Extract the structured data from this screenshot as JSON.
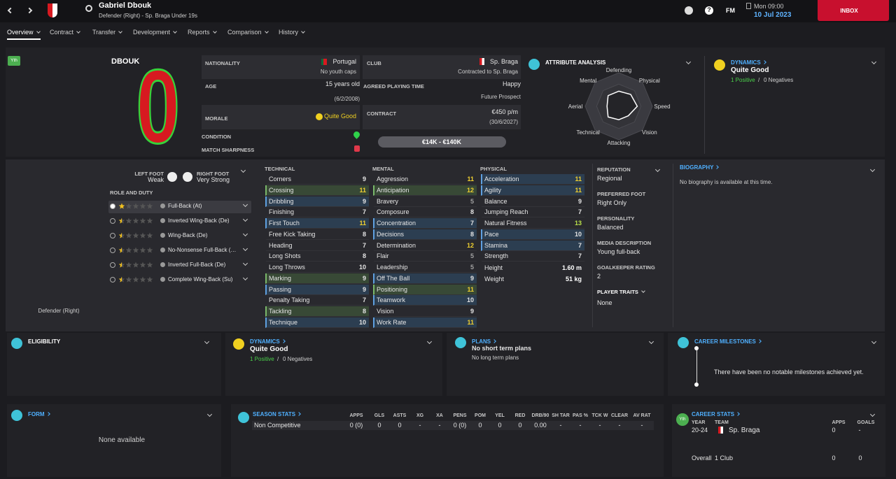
{
  "header": {
    "player_name": "Gabriel Dbouk",
    "subtitle": "Defender (Right) - Sp. Braga Under 19s",
    "help_icon": "?",
    "logo": "FM",
    "day_time": "Mon 09:00",
    "date": "10 Jul 2023",
    "inbox": "INBOX"
  },
  "tabs": [
    "Overview",
    "Contract",
    "Transfer",
    "Development",
    "Reports",
    "Comparison",
    "History"
  ],
  "profile": {
    "badge": "Yth",
    "surname": "DBOUK",
    "shirt_number": 0
  },
  "details": {
    "nationality": {
      "label": "NATIONALITY",
      "value": "Portugal",
      "note": "No youth caps"
    },
    "age": {
      "label": "AGE",
      "value": "15 years old",
      "note": "(6/2/2008)"
    },
    "morale": {
      "label": "MORALE",
      "value": "Quite Good"
    },
    "condition": {
      "label": "CONDITION"
    },
    "match_sharpness": {
      "label": "MATCH SHARPNESS"
    },
    "club": {
      "label": "CLUB",
      "value": "Sp. Braga",
      "note": "Contracted to Sp. Braga"
    },
    "playing_time": {
      "label": "AGREED PLAYING TIME",
      "value": "Happy",
      "note": "Future Prospect"
    },
    "contract": {
      "label": "CONTRACT",
      "value": "€450 p/m",
      "note": "(30/6/2027)"
    },
    "value_range": "€14K - €140K"
  },
  "attribute_analysis": {
    "title": "ATTRIBUTE ANALYSIS",
    "rlim": [
      0,
      20
    ],
    "axes": [
      {
        "label": "Defending",
        "value": 9
      },
      {
        "label": "Physical",
        "value": 10
      },
      {
        "label": "Speed",
        "value": 11
      },
      {
        "label": "Vision",
        "value": 8
      },
      {
        "label": "Attacking",
        "value": 8
      },
      {
        "label": "Technical",
        "value": 9
      },
      {
        "label": "Aerial",
        "value": 7
      },
      {
        "label": "Mental",
        "value": 9
      }
    ]
  },
  "dynamics": {
    "title": "DYNAMICS",
    "value": "Quite Good",
    "positives": "1 Positive",
    "separator": "/",
    "negatives": "0 Negatives"
  },
  "feet": {
    "left_label": "LEFT FOOT",
    "left": "Weak",
    "right_label": "RIGHT FOOT",
    "right": "Very Strong"
  },
  "roles": {
    "title": "ROLE AND DUTY",
    "items": [
      {
        "name": "Full-Back (At)",
        "stars": 1,
        "selected": true
      },
      {
        "name": "Inverted Wing-Back (De)",
        "stars": 0.5
      },
      {
        "name": "Wing-Back (De)",
        "stars": 0.5
      },
      {
        "name": "No-Nonsense Full-Back (…",
        "stars": 0.5
      },
      {
        "name": "Inverted Full-Back (De)",
        "stars": 0.5
      },
      {
        "name": "Complete Wing-Back (Su)",
        "stars": 0.5
      }
    ]
  },
  "position": "Defender (Right)",
  "attributes": {
    "groups": [
      {
        "title": "TECHNICAL",
        "items": [
          {
            "name": "Corners",
            "value": 9
          },
          {
            "name": "Crossing",
            "value": 11,
            "highlight": "key"
          },
          {
            "name": "Dribbling",
            "value": 9,
            "highlight": "preferred"
          },
          {
            "name": "Finishing",
            "value": 7
          },
          {
            "name": "First Touch",
            "value": 11,
            "highlight": "preferred"
          },
          {
            "name": "Free Kick Taking",
            "value": 8
          },
          {
            "name": "Heading",
            "value": 7
          },
          {
            "name": "Long Shots",
            "value": 8
          },
          {
            "name": "Long Throws",
            "value": 10
          },
          {
            "name": "Marking",
            "value": 9,
            "highlight": "key"
          },
          {
            "name": "Passing",
            "value": 9,
            "highlight": "preferred"
          },
          {
            "name": "Penalty Taking",
            "value": 7
          },
          {
            "name": "Tackling",
            "value": 8,
            "highlight": "key"
          },
          {
            "name": "Technique",
            "value": 10,
            "highlight": "preferred"
          }
        ]
      },
      {
        "title": "MENTAL",
        "items": [
          {
            "name": "Aggression",
            "value": 11
          },
          {
            "name": "Anticipation",
            "value": 12,
            "highlight": "key"
          },
          {
            "name": "Bravery",
            "value": 5
          },
          {
            "name": "Composure",
            "value": 8
          },
          {
            "name": "Concentration",
            "value": 7,
            "highlight": "preferred"
          },
          {
            "name": "Decisions",
            "value": 8,
            "highlight": "preferred"
          },
          {
            "name": "Determination",
            "value": 12
          },
          {
            "name": "Flair",
            "value": 5
          },
          {
            "name": "Leadership",
            "value": 5
          },
          {
            "name": "Off The Ball",
            "value": 9,
            "highlight": "preferred"
          },
          {
            "name": "Positioning",
            "value": 11,
            "highlight": "key"
          },
          {
            "name": "Teamwork",
            "value": 10,
            "highlight": "preferred"
          },
          {
            "name": "Vision",
            "value": 9
          },
          {
            "name": "Work Rate",
            "value": 11,
            "highlight": "preferred"
          }
        ]
      },
      {
        "title": "PHYSICAL",
        "items": [
          {
            "name": "Acceleration",
            "value": 11,
            "highlight": "preferred"
          },
          {
            "name": "Agility",
            "value": 11,
            "highlight": "preferred"
          },
          {
            "name": "Balance",
            "value": 9
          },
          {
            "name": "Jumping Reach",
            "value": 7
          },
          {
            "name": "Natural Fitness",
            "value": 13
          },
          {
            "name": "Pace",
            "value": 10,
            "highlight": "preferred"
          },
          {
            "name": "Stamina",
            "value": 7,
            "highlight": "preferred"
          },
          {
            "name": "Strength",
            "value": 7
          }
        ]
      }
    ],
    "measurements": [
      {
        "name": "Height",
        "value": "1.60 m"
      },
      {
        "name": "Weight",
        "value": "51 kg"
      }
    ]
  },
  "info": [
    {
      "label": "REPUTATION",
      "value": "Regional"
    },
    {
      "label": "PREFERRED FOOT",
      "value": "Right Only"
    },
    {
      "label": "PERSONALITY",
      "value": "Balanced"
    },
    {
      "label": "MEDIA DESCRIPTION",
      "value": "Young full-back"
    },
    {
      "label": "GOALKEEPER RATING",
      "value": 2
    },
    {
      "label": "PLAYER TRAITS",
      "value": "None"
    }
  ],
  "biography": {
    "title": "BIOGRAPHY",
    "text": "No biography is available at this time."
  },
  "eligibility": {
    "title": "ELIGIBILITY"
  },
  "plans": {
    "title": "PLANS",
    "short": "No short term plans",
    "long": "No long term plans"
  },
  "milestones": {
    "title": "CAREER MILESTONES",
    "text": "There have been no notable milestones achieved yet."
  },
  "form": {
    "title": "FORM",
    "text": "None available"
  },
  "season_stats": {
    "title": "SEASON STATS",
    "columns": [
      "APPS",
      "GLS",
      "ASTS",
      "XG",
      "XA",
      "PENS",
      "POM",
      "YEL",
      "RED",
      "DRB/90",
      "SH TAR",
      "PAS %",
      "TCK W",
      "CLEAR",
      "AV RAT"
    ],
    "rows": [
      {
        "label": "Non Competitive",
        "values": [
          "0 (0)",
          0,
          0,
          "-",
          "-",
          "0 (0)",
          0,
          0,
          0,
          "0.00",
          "-",
          "-",
          "-",
          "-",
          "-"
        ]
      }
    ]
  },
  "career_stats": {
    "badge": "Yth",
    "title": "CAREER STATS",
    "columns": [
      "YEAR",
      "TEAM",
      "APPS",
      "GOALS"
    ],
    "rows": [
      [
        "20-24",
        "Sp. Braga",
        0,
        "-"
      ]
    ],
    "total": [
      "Overall",
      "1 Club",
      0,
      0
    ]
  }
}
